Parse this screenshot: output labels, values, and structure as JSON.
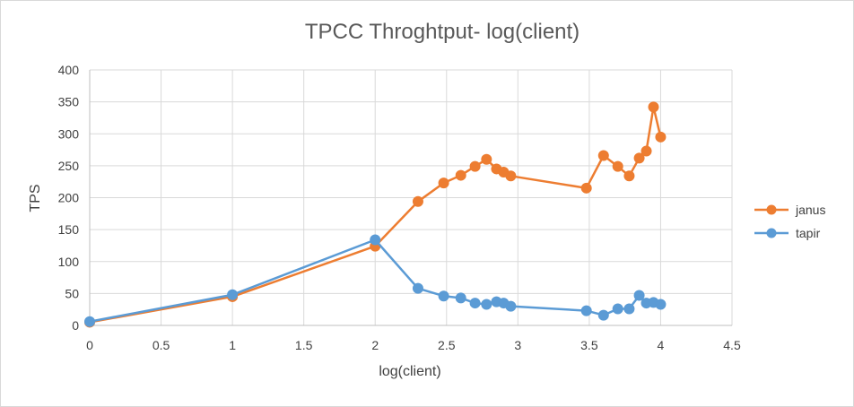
{
  "chart_data": {
    "type": "scatter",
    "title": "TPCC Throghtput- log(client)",
    "xlabel": "log(client)",
    "ylabel": "TPS",
    "xlim": [
      0,
      4.5
    ],
    "ylim": [
      0,
      400
    ],
    "x_ticks": [
      "0",
      "0.5",
      "1",
      "1.5",
      "2",
      "2.5",
      "3",
      "3.5",
      "4",
      "4.5"
    ],
    "y_ticks": [
      "0",
      "50",
      "100",
      "150",
      "200",
      "250",
      "300",
      "350",
      "400"
    ],
    "grid": true,
    "legend_position": "right",
    "series": [
      {
        "name": "janus",
        "color": "#ED7D31",
        "x": [
          0,
          1,
          2,
          2.3,
          2.48,
          2.6,
          2.7,
          2.78,
          2.85,
          2.9,
          2.95,
          3.48,
          3.6,
          3.7,
          3.78,
          3.85,
          3.9,
          3.95,
          4.0
        ],
        "y": [
          5,
          45,
          124,
          194,
          223,
          235,
          249,
          260,
          245,
          240,
          234,
          215,
          266,
          249,
          234,
          262,
          273,
          342,
          295
        ]
      },
      {
        "name": "tapir",
        "color": "#5B9BD5",
        "x": [
          0,
          1,
          2,
          2.3,
          2.48,
          2.6,
          2.7,
          2.78,
          2.85,
          2.9,
          2.95,
          3.48,
          3.6,
          3.7,
          3.78,
          3.85,
          3.9,
          3.95,
          4.0
        ],
        "y": [
          6,
          48,
          134,
          58,
          46,
          43,
          35,
          33,
          37,
          35,
          30,
          23,
          16,
          26,
          26,
          47,
          35,
          36,
          33
        ]
      }
    ]
  }
}
